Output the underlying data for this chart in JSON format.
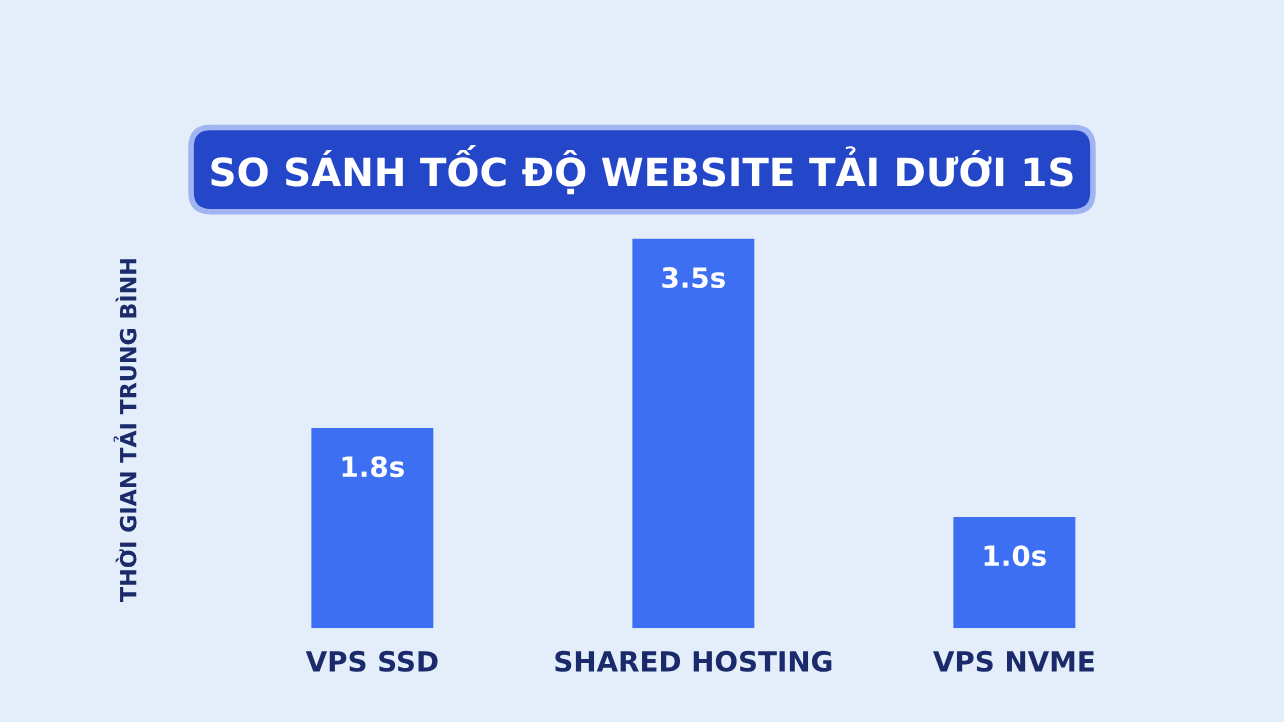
{
  "chart_data": {
    "type": "bar",
    "title": "SO SÁNH TỐC ĐỘ WEBSITE TẢI DƯỚI 1S",
    "ylabel": "THỜI GIAN TẢI TRUNG BÌNH",
    "categories": [
      "VPS SSD",
      "SHARED HOSTING",
      "VPS NVME"
    ],
    "values": [
      1.8,
      3.5,
      1.0
    ],
    "value_labels": [
      "1.8s",
      "3.5s",
      "1.0s"
    ],
    "color": "#3d6ff2",
    "grid": false,
    "legend": false
  }
}
